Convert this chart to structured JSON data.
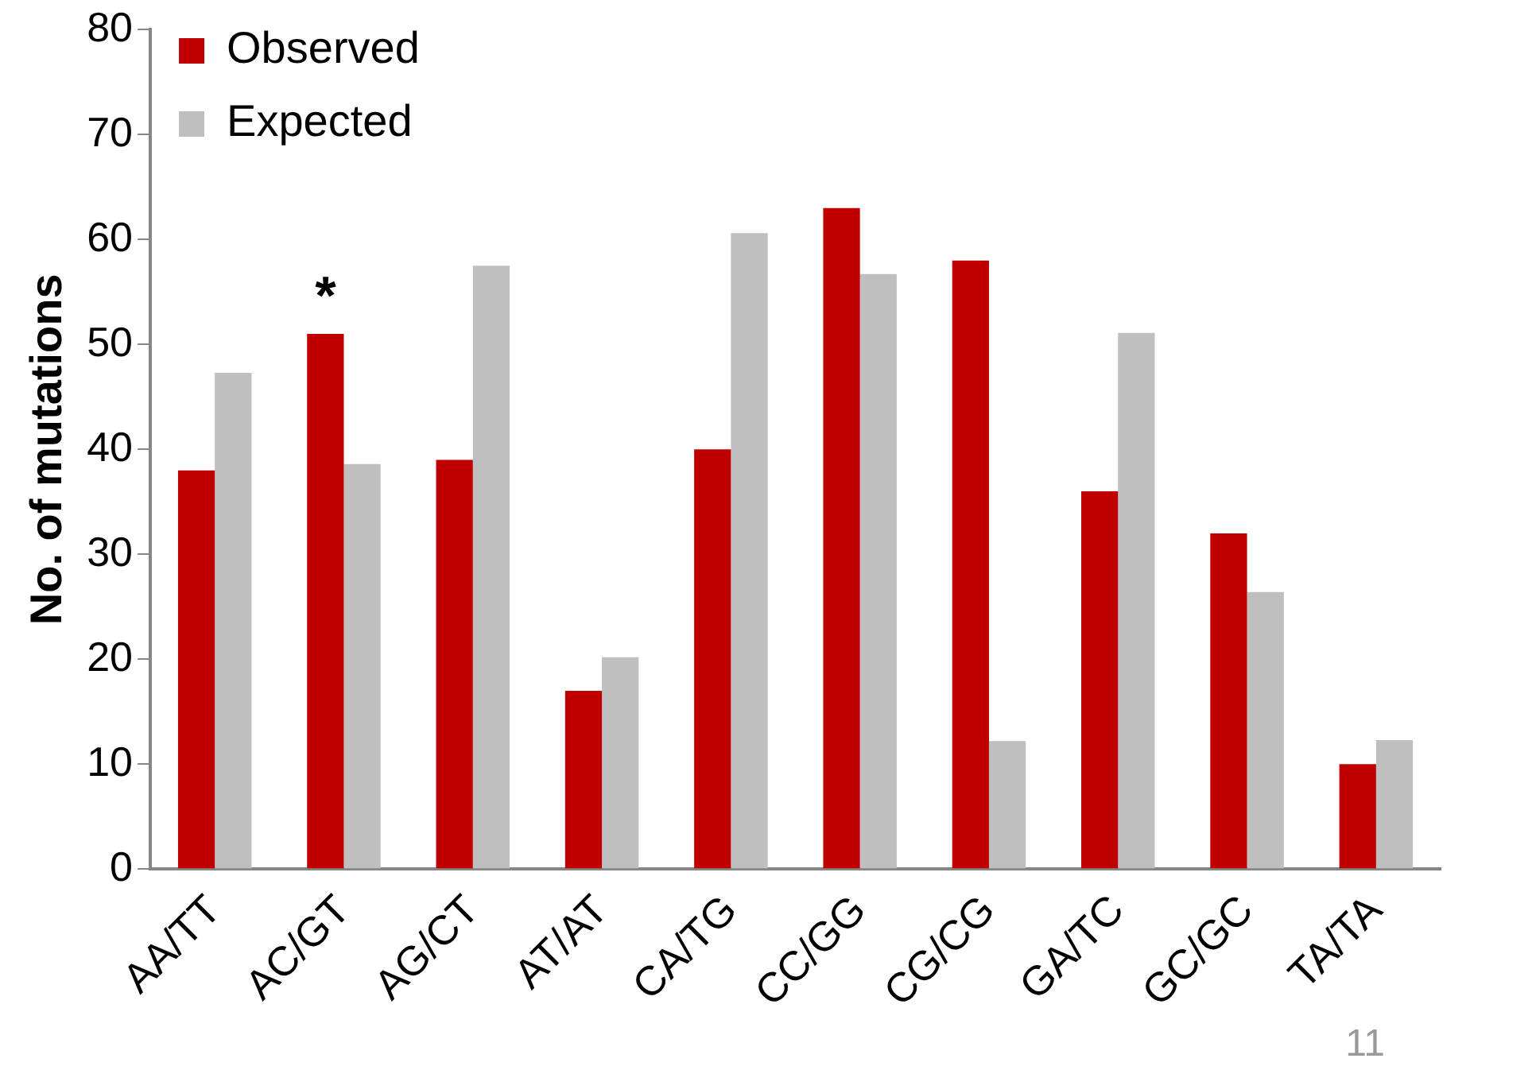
{
  "chart_data": {
    "type": "bar",
    "ylabel": "No. of mutations",
    "categories": [
      "AA/TT",
      "AC/GT",
      "AG/CT",
      "AT/AT",
      "CA/TG",
      "CC/GG",
      "CG/CG",
      "GA/TC",
      "GC/GC",
      "TA/TA"
    ],
    "series": [
      {
        "name": "Observed",
        "color": "#c00000",
        "values": [
          38,
          51,
          39,
          17,
          40,
          63,
          58,
          36,
          32,
          10
        ]
      },
      {
        "name": "Expected",
        "color": "#bfbfbf",
        "values": [
          47.3,
          38.6,
          57.5,
          20.2,
          60.6,
          56.7,
          12.2,
          51.1,
          26.4,
          12.3
        ]
      }
    ],
    "ylim": [
      0,
      80
    ],
    "yticks": [
      0,
      10,
      20,
      30,
      40,
      50,
      60,
      70,
      80
    ],
    "grid": false,
    "legend": "top left",
    "annotations": [
      {
        "text": "*",
        "x": "AC/GT",
        "y": 51
      },
      "11"
    ]
  }
}
